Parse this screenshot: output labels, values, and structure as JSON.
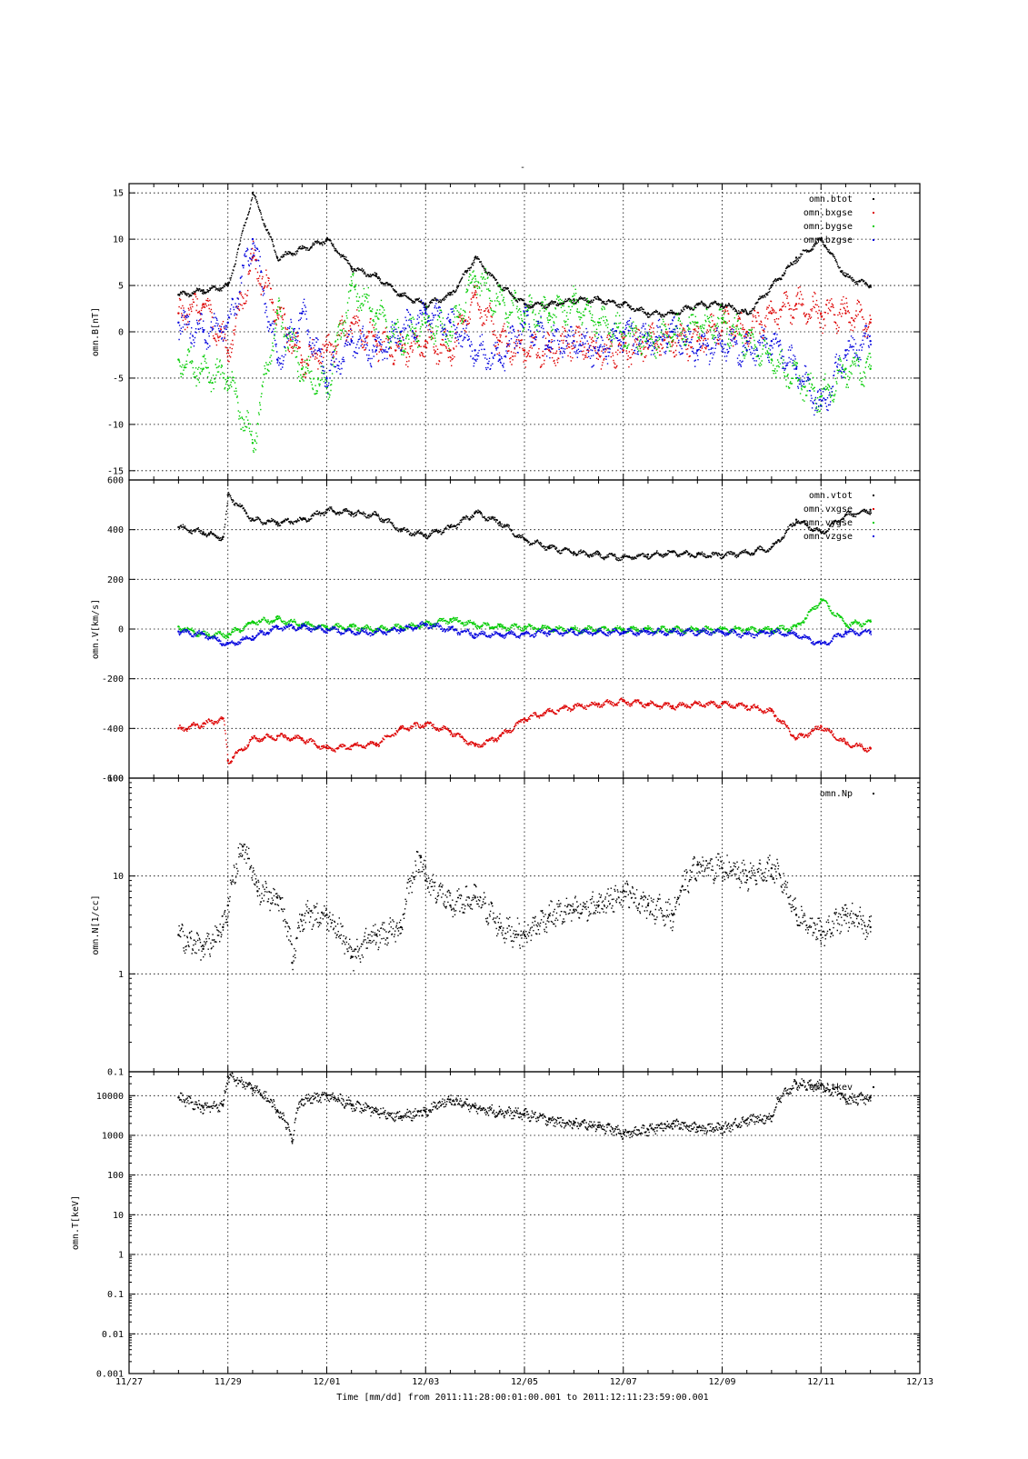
{
  "figure": {
    "title": "-",
    "xlabel": "Time [mm/dd]  from 2011:11:28:00:01:00.001  to  2011:12:11:23:59:00.001",
    "xticks": [
      "11/27",
      "11/29",
      "12/01",
      "12/03",
      "12/05",
      "12/07",
      "12/09",
      "12/11",
      "12/13"
    ],
    "xlim_days": [
      0,
      16
    ],
    "x_unit": "days since 11/27 00:00",
    "data_range_days": [
      1.0,
      15.0
    ],
    "colors": {
      "black": "#000000",
      "red": "#dd0000",
      "green": "#00cc00",
      "blue": "#0000dd"
    }
  },
  "chart_data": [
    {
      "type": "scatter",
      "ylabel": "omn.B[nT]",
      "yscale": "linear",
      "ylim": [
        -16,
        16
      ],
      "yticks": [
        -15,
        -10,
        -5,
        0,
        5,
        10,
        15
      ],
      "ytick_labels": [
        "-15",
        "-10",
        "-5",
        "0",
        "5",
        "10",
        "15"
      ],
      "grid": true,
      "legend_placement": "top-right",
      "series": [
        {
          "name": "omn.btot",
          "color": "#000000",
          "x": [
            1.0,
            1.5,
            2.0,
            2.5,
            3.0,
            3.5,
            4.0,
            4.5,
            5.0,
            5.5,
            6.0,
            6.5,
            7.0,
            7.5,
            8.0,
            8.5,
            9.0,
            9.5,
            10.0,
            10.5,
            11.0,
            11.5,
            12.0,
            12.5,
            13.0,
            13.5,
            14.0,
            14.5,
            15.0
          ],
          "y": [
            4,
            4.5,
            5,
            15,
            8,
            9,
            10,
            7,
            6,
            4,
            3,
            4,
            8,
            5,
            3,
            3,
            3.5,
            3.5,
            3,
            2,
            2,
            3,
            3,
            2,
            5,
            8,
            10,
            6,
            5
          ]
        },
        {
          "name": "omn.bxgse",
          "color": "#dd0000",
          "x": [
            1.0,
            1.5,
            2.0,
            2.5,
            3.0,
            3.5,
            4.0,
            4.5,
            5.0,
            5.5,
            6.0,
            6.5,
            7.0,
            7.5,
            8.0,
            8.5,
            9.0,
            9.5,
            10.0,
            10.5,
            11.0,
            11.5,
            12.0,
            12.5,
            13.0,
            13.5,
            14.0,
            14.5,
            15.0
          ],
          "y": [
            2,
            3,
            -2,
            8,
            2,
            -3,
            -2,
            1,
            -1,
            -2,
            -1,
            -2,
            4,
            -1,
            -2,
            -2,
            -1,
            -2,
            -2,
            -1,
            -1,
            -1,
            1,
            0,
            2,
            3,
            2,
            2,
            1
          ]
        },
        {
          "name": "omn.bygse",
          "color": "#00cc00",
          "x": [
            1.0,
            1.5,
            2.0,
            2.5,
            3.0,
            3.5,
            4.0,
            4.5,
            5.0,
            5.5,
            6.0,
            6.5,
            7.0,
            7.5,
            8.0,
            8.5,
            9.0,
            9.5,
            10.0,
            10.5,
            11.0,
            11.5,
            12.0,
            12.5,
            13.0,
            13.5,
            14.0,
            14.5,
            15.0
          ],
          "y": [
            -3,
            -4,
            -5,
            -12,
            2,
            -4,
            -6,
            5,
            2,
            -1,
            1,
            0,
            6,
            3,
            2,
            2,
            3,
            1,
            0,
            -1,
            0,
            1,
            1,
            -1,
            -3,
            -5,
            -7,
            -4,
            -4
          ]
        },
        {
          "name": "omn.bzgse",
          "color": "#0000dd",
          "x": [
            1.0,
            1.5,
            2.0,
            2.5,
            3.0,
            3.5,
            4.0,
            4.5,
            5.0,
            5.5,
            6.0,
            6.5,
            7.0,
            7.5,
            8.0,
            8.5,
            9.0,
            9.5,
            10.0,
            10.5,
            11.0,
            11.5,
            12.0,
            12.5,
            13.0,
            13.5,
            14.0,
            14.5,
            15.0
          ],
          "y": [
            1,
            0,
            1,
            10,
            -3,
            2,
            -5,
            -1,
            -2,
            0,
            2,
            1,
            -2,
            -3,
            1,
            -1,
            -1,
            -2,
            0,
            -1,
            0,
            -2,
            -1,
            -2,
            -1,
            -4,
            -8,
            -2,
            -1
          ]
        }
      ]
    },
    {
      "type": "scatter",
      "ylabel": "omn.V[km/s]",
      "yscale": "linear",
      "ylim": [
        -600,
        600
      ],
      "yticks": [
        -600,
        -400,
        -200,
        0,
        200,
        400,
        600
      ],
      "ytick_labels": [
        "-600",
        "-400",
        "-200",
        "0",
        "200",
        "400",
        "600"
      ],
      "grid": true,
      "legend_placement": "top-right",
      "series": [
        {
          "name": "omn.vtot",
          "color": "#000000",
          "x": [
            1.0,
            1.5,
            1.9,
            2.0,
            2.5,
            3.0,
            3.5,
            4.0,
            4.5,
            5.0,
            5.5,
            6.0,
            6.5,
            7.0,
            7.5,
            8.0,
            8.5,
            9.0,
            9.5,
            10.0,
            10.5,
            11.0,
            11.5,
            12.0,
            12.5,
            13.0,
            13.5,
            14.0,
            14.5,
            15.0
          ],
          "y": [
            410,
            390,
            370,
            540,
            440,
            430,
            440,
            480,
            470,
            460,
            400,
            380,
            410,
            470,
            430,
            360,
            330,
            310,
            300,
            290,
            300,
            310,
            300,
            300,
            310,
            330,
            440,
            390,
            460,
            480
          ]
        },
        {
          "name": "omn.vxgse",
          "color": "#dd0000",
          "x": [
            1.0,
            1.5,
            1.9,
            2.0,
            2.5,
            3.0,
            3.5,
            4.0,
            4.5,
            5.0,
            5.5,
            6.0,
            6.5,
            7.0,
            7.5,
            8.0,
            8.5,
            9.0,
            9.5,
            10.0,
            10.5,
            11.0,
            11.5,
            12.0,
            12.5,
            13.0,
            13.5,
            14.0,
            14.5,
            15.0
          ],
          "y": [
            -400,
            -380,
            -360,
            -530,
            -440,
            -430,
            -440,
            -480,
            -470,
            -460,
            -400,
            -380,
            -410,
            -470,
            -430,
            -360,
            -330,
            -310,
            -300,
            -290,
            -300,
            -310,
            -300,
            -300,
            -310,
            -330,
            -440,
            -390,
            -460,
            -480
          ]
        },
        {
          "name": "omn.vygse",
          "color": "#00cc00",
          "x": [
            1.0,
            1.5,
            2.0,
            2.5,
            3.0,
            3.5,
            4.0,
            4.5,
            5.0,
            5.5,
            6.0,
            6.5,
            7.0,
            7.5,
            8.0,
            8.5,
            9.0,
            9.5,
            10.0,
            10.5,
            11.0,
            11.5,
            12.0,
            12.5,
            13.0,
            13.5,
            14.0,
            14.5,
            15.0
          ],
          "y": [
            10,
            -20,
            -20,
            30,
            40,
            20,
            10,
            10,
            0,
            10,
            20,
            40,
            20,
            10,
            10,
            5,
            0,
            0,
            0,
            0,
            0,
            0,
            0,
            0,
            0,
            10,
            120,
            20,
            30
          ]
        },
        {
          "name": "omn.vzgse",
          "color": "#0000dd",
          "x": [
            1.0,
            1.5,
            2.0,
            2.5,
            3.0,
            3.5,
            4.0,
            4.5,
            5.0,
            5.5,
            6.0,
            6.5,
            7.0,
            7.5,
            8.0,
            8.5,
            9.0,
            9.5,
            10.0,
            10.5,
            11.0,
            11.5,
            12.0,
            12.5,
            13.0,
            13.5,
            14.0,
            14.5,
            15.0
          ],
          "y": [
            -10,
            -20,
            -60,
            -30,
            10,
            10,
            0,
            -10,
            -10,
            0,
            20,
            0,
            -20,
            -20,
            -20,
            -10,
            -10,
            -10,
            -10,
            -10,
            -10,
            -10,
            -10,
            -20,
            -10,
            -20,
            -60,
            -10,
            -10
          ]
        }
      ]
    },
    {
      "type": "scatter",
      "ylabel": "omn.N[1/cc]",
      "yscale": "log",
      "ylim": [
        0.1,
        100
      ],
      "yticks": [
        0.1,
        1,
        10,
        100
      ],
      "ytick_labels": [
        "0.1",
        "1",
        "10",
        "100"
      ],
      "grid": true,
      "legend_placement": "top-right",
      "series": [
        {
          "name": "omn.Np",
          "color": "#000000",
          "x": [
            1.0,
            1.5,
            1.9,
            2.0,
            2.3,
            2.6,
            3.0,
            3.3,
            3.5,
            4.0,
            4.5,
            5.0,
            5.5,
            5.9,
            6.0,
            6.5,
            7.0,
            7.5,
            8.0,
            8.5,
            9.0,
            9.5,
            10.0,
            10.5,
            11.0,
            11.5,
            12.0,
            12.5,
            13.0,
            13.5,
            14.0,
            14.5,
            15.0
          ],
          "y": [
            2.5,
            1.8,
            3,
            5,
            20,
            7,
            6,
            1.3,
            4,
            4,
            1.5,
            2.5,
            3,
            16,
            9,
            5,
            6,
            3,
            2.5,
            4,
            4.5,
            5,
            7,
            5,
            4,
            13,
            12,
            10,
            12,
            4,
            2.5,
            4,
            3
          ]
        }
      ]
    },
    {
      "type": "scatter",
      "ylabel": "omn.T[keV]",
      "yscale": "log",
      "ylim": [
        0.001,
        40000
      ],
      "yticks": [
        0.001,
        0.01,
        0.1,
        1,
        10,
        100,
        1000,
        10000
      ],
      "ytick_labels": [
        "0.001",
        "0.01",
        "0.1",
        "1",
        "10",
        "100",
        "1000",
        "10000"
      ],
      "grid": true,
      "legend_placement": "top-right",
      "series": [
        {
          "name": "omn.tkev",
          "color": "#000000",
          "x": [
            1.0,
            1.5,
            1.9,
            2.0,
            2.5,
            3.0,
            3.3,
            3.5,
            4.0,
            4.5,
            5.0,
            5.5,
            6.0,
            6.5,
            7.0,
            7.5,
            8.0,
            8.5,
            9.0,
            9.5,
            10.0,
            10.5,
            11.0,
            11.5,
            12.0,
            12.5,
            13.0,
            13.5,
            14.0,
            14.5,
            15.0
          ],
          "y": [
            9000,
            5000,
            6000,
            30000,
            15000,
            4000,
            700,
            8000,
            10000,
            6000,
            4000,
            3000,
            4000,
            8000,
            5000,
            4000,
            3500,
            2500,
            2000,
            1800,
            1100,
            1400,
            2000,
            1600,
            1500,
            2500,
            3000,
            20000,
            18000,
            8000,
            9000
          ]
        }
      ]
    }
  ]
}
